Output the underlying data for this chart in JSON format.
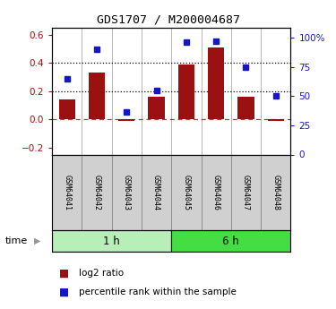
{
  "title": "GDS1707 / M200004687",
  "samples": [
    "GSM64041",
    "GSM64042",
    "GSM64043",
    "GSM64044",
    "GSM64045",
    "GSM64046",
    "GSM64047",
    "GSM64048"
  ],
  "log2_ratio": [
    0.14,
    0.33,
    -0.01,
    0.16,
    0.39,
    0.51,
    0.16,
    -0.01
  ],
  "percentile_rank": [
    65,
    90,
    36,
    55,
    96,
    97,
    75,
    50
  ],
  "bar_color": "#9B1010",
  "dot_color": "#1515CC",
  "ylim_left": [
    -0.25,
    0.65
  ],
  "ylim_right": [
    0,
    108.33
  ],
  "yticks_left": [
    -0.2,
    0.0,
    0.2,
    0.4,
    0.6
  ],
  "yticks_right": [
    0,
    25,
    50,
    75,
    100
  ],
  "ytick_labels_right": [
    "0",
    "25",
    "50",
    "75",
    "100%"
  ],
  "hline_dotted": [
    0.2,
    0.4
  ],
  "group1_label": "1 h",
  "group2_label": "6 h",
  "group1_indices": [
    0,
    1,
    2,
    3
  ],
  "group2_indices": [
    4,
    5,
    6,
    7
  ],
  "time_label": "time",
  "legend_bar_label": "log2 ratio",
  "legend_dot_label": "percentile rank within the sample",
  "group_bg_light": "#B8EEB8",
  "group_bg_dark": "#44DD44",
  "sample_box_color": "#D0D0D0",
  "bar_width": 0.55
}
